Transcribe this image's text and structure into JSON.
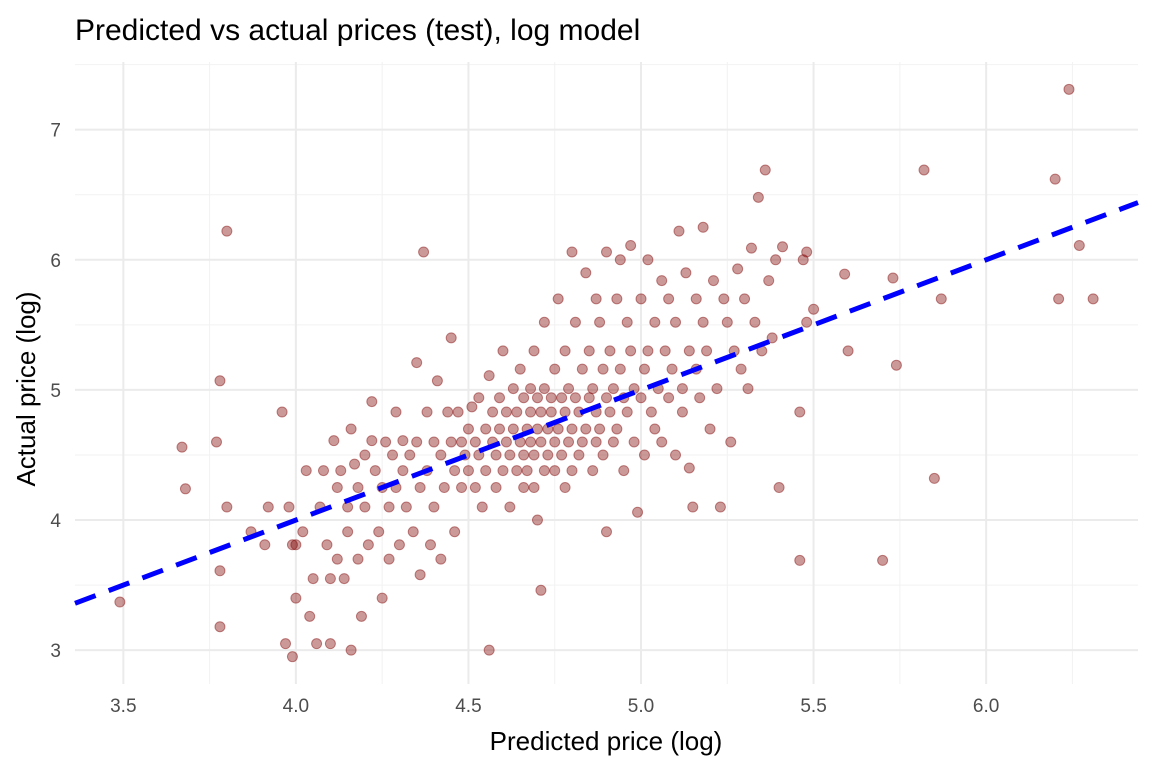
{
  "chart_data": {
    "type": "scatter",
    "title": "Predicted vs actual prices (test), log model",
    "xlabel": "Predicted price (log)",
    "ylabel": "Actual price (log)",
    "xlim": [
      3.36,
      6.44
    ],
    "ylim": [
      2.74,
      7.52
    ],
    "x_ticks": [
      3.5,
      4.0,
      4.5,
      5.0,
      5.5,
      6.0
    ],
    "x_tick_labels": [
      "3.5",
      "4.0",
      "4.5",
      "5.0",
      "5.5",
      "6.0"
    ],
    "y_ticks": [
      3,
      4,
      5,
      6,
      7
    ],
    "y_tick_labels": [
      "3",
      "4",
      "5",
      "6",
      "7"
    ],
    "grid": true,
    "legend": "none",
    "colors": {
      "points": "#7f0000",
      "reference_line": "#0000ff"
    },
    "reference_line": {
      "name": "",
      "slope": 1,
      "intercept": 0,
      "style": "dashed"
    },
    "series": [
      {
        "values": [
          [
            3.49,
            3.37
          ],
          [
            3.67,
            4.56
          ],
          [
            3.68,
            4.24
          ],
          [
            3.77,
            4.6
          ],
          [
            3.78,
            5.07
          ],
          [
            3.78,
            3.61
          ],
          [
            3.78,
            3.18
          ],
          [
            3.8,
            6.22
          ],
          [
            3.8,
            4.1
          ],
          [
            3.87,
            3.91
          ],
          [
            3.91,
            3.81
          ],
          [
            3.92,
            4.1
          ],
          [
            3.96,
            4.83
          ],
          [
            3.97,
            3.05
          ],
          [
            3.98,
            4.1
          ],
          [
            3.99,
            3.81
          ],
          [
            3.99,
            2.95
          ],
          [
            4.0,
            3.4
          ],
          [
            4.0,
            3.81
          ],
          [
            4.02,
            3.91
          ],
          [
            4.03,
            4.38
          ],
          [
            4.04,
            3.26
          ],
          [
            4.05,
            3.55
          ],
          [
            4.06,
            3.05
          ],
          [
            4.07,
            4.1
          ],
          [
            4.08,
            4.38
          ],
          [
            4.09,
            3.81
          ],
          [
            4.1,
            3.55
          ],
          [
            4.1,
            3.05
          ],
          [
            4.11,
            4.61
          ],
          [
            4.12,
            4.25
          ],
          [
            4.12,
            3.7
          ],
          [
            4.13,
            4.38
          ],
          [
            4.14,
            3.55
          ],
          [
            4.15,
            4.1
          ],
          [
            4.15,
            3.91
          ],
          [
            4.16,
            4.7
          ],
          [
            4.16,
            3.0
          ],
          [
            4.17,
            4.43
          ],
          [
            4.18,
            4.25
          ],
          [
            4.18,
            3.7
          ],
          [
            4.19,
            3.26
          ],
          [
            4.2,
            4.5
          ],
          [
            4.2,
            4.1
          ],
          [
            4.21,
            3.81
          ],
          [
            4.22,
            4.91
          ],
          [
            4.22,
            4.61
          ],
          [
            4.23,
            4.38
          ],
          [
            4.24,
            3.91
          ],
          [
            4.25,
            4.25
          ],
          [
            4.25,
            3.4
          ],
          [
            4.26,
            4.6
          ],
          [
            4.27,
            4.1
          ],
          [
            4.27,
            3.7
          ],
          [
            4.28,
            4.5
          ],
          [
            4.29,
            4.83
          ],
          [
            4.29,
            4.25
          ],
          [
            4.3,
            3.81
          ],
          [
            4.31,
            4.61
          ],
          [
            4.31,
            4.38
          ],
          [
            4.32,
            4.1
          ],
          [
            4.33,
            4.5
          ],
          [
            4.34,
            3.91
          ],
          [
            4.35,
            5.21
          ],
          [
            4.35,
            4.6
          ],
          [
            4.36,
            4.25
          ],
          [
            4.36,
            3.58
          ],
          [
            4.37,
            6.06
          ],
          [
            4.38,
            4.83
          ],
          [
            4.38,
            4.38
          ],
          [
            4.39,
            3.81
          ],
          [
            4.4,
            4.6
          ],
          [
            4.4,
            4.1
          ],
          [
            4.41,
            5.07
          ],
          [
            4.42,
            4.5
          ],
          [
            4.42,
            3.7
          ],
          [
            4.43,
            4.25
          ],
          [
            4.44,
            4.83
          ],
          [
            4.45,
            5.4
          ],
          [
            4.45,
            4.6
          ],
          [
            4.46,
            4.38
          ],
          [
            4.46,
            3.91
          ],
          [
            4.47,
            4.83
          ],
          [
            4.48,
            4.6
          ],
          [
            4.48,
            4.25
          ],
          [
            4.49,
            4.5
          ],
          [
            4.5,
            4.7
          ],
          [
            4.5,
            4.38
          ],
          [
            4.51,
            4.87
          ],
          [
            4.52,
            4.6
          ],
          [
            4.52,
            4.25
          ],
          [
            4.53,
            4.94
          ],
          [
            4.53,
            4.5
          ],
          [
            4.54,
            4.1
          ],
          [
            4.55,
            4.7
          ],
          [
            4.55,
            4.38
          ],
          [
            4.56,
            3.0
          ],
          [
            4.56,
            5.11
          ],
          [
            4.57,
            4.83
          ],
          [
            4.57,
            4.6
          ],
          [
            4.58,
            4.25
          ],
          [
            4.58,
            4.5
          ],
          [
            4.59,
            4.94
          ],
          [
            4.59,
            4.7
          ],
          [
            4.6,
            4.38
          ],
          [
            4.6,
            5.3
          ],
          [
            4.61,
            4.6
          ],
          [
            4.61,
            4.83
          ],
          [
            4.62,
            4.1
          ],
          [
            4.62,
            4.5
          ],
          [
            4.63,
            5.01
          ],
          [
            4.63,
            4.7
          ],
          [
            4.64,
            4.38
          ],
          [
            4.64,
            4.83
          ],
          [
            4.65,
            4.6
          ],
          [
            4.65,
            5.16
          ],
          [
            4.66,
            4.25
          ],
          [
            4.66,
            4.94
          ],
          [
            4.66,
            4.5
          ],
          [
            4.67,
            4.7
          ],
          [
            4.67,
            4.38
          ],
          [
            4.68,
            5.01
          ],
          [
            4.68,
            4.83
          ],
          [
            4.68,
            4.6
          ],
          [
            4.69,
            5.3
          ],
          [
            4.69,
            4.5
          ],
          [
            4.69,
            4.25
          ],
          [
            4.7,
            4.94
          ],
          [
            4.7,
            4.7
          ],
          [
            4.7,
            4.0
          ],
          [
            4.71,
            3.46
          ],
          [
            4.71,
            4.83
          ],
          [
            4.71,
            4.6
          ],
          [
            4.72,
            5.52
          ],
          [
            4.72,
            4.38
          ],
          [
            4.72,
            5.01
          ],
          [
            4.73,
            4.7
          ],
          [
            4.73,
            4.5
          ],
          [
            4.74,
            4.94
          ],
          [
            4.74,
            4.83
          ],
          [
            4.75,
            5.16
          ],
          [
            4.75,
            4.6
          ],
          [
            4.75,
            4.38
          ],
          [
            4.76,
            5.7
          ],
          [
            4.76,
            4.7
          ],
          [
            4.77,
            4.94
          ],
          [
            4.77,
            4.5
          ],
          [
            4.78,
            5.3
          ],
          [
            4.78,
            4.83
          ],
          [
            4.78,
            4.25
          ],
          [
            4.79,
            4.6
          ],
          [
            4.79,
            5.01
          ],
          [
            4.8,
            6.06
          ],
          [
            4.8,
            4.7
          ],
          [
            4.8,
            4.38
          ],
          [
            4.81,
            4.94
          ],
          [
            4.81,
            5.52
          ],
          [
            4.82,
            4.83
          ],
          [
            4.82,
            4.5
          ],
          [
            4.83,
            5.16
          ],
          [
            4.83,
            4.6
          ],
          [
            4.84,
            5.9
          ],
          [
            4.84,
            4.7
          ],
          [
            4.85,
            5.3
          ],
          [
            4.85,
            4.94
          ],
          [
            4.86,
            4.38
          ],
          [
            4.86,
            5.01
          ],
          [
            4.87,
            5.7
          ],
          [
            4.87,
            4.83
          ],
          [
            4.87,
            4.6
          ],
          [
            4.88,
            5.52
          ],
          [
            4.88,
            4.7
          ],
          [
            4.89,
            5.16
          ],
          [
            4.89,
            4.5
          ],
          [
            4.9,
            6.06
          ],
          [
            4.9,
            4.94
          ],
          [
            4.9,
            3.91
          ],
          [
            4.91,
            5.3
          ],
          [
            4.91,
            4.83
          ],
          [
            4.92,
            5.01
          ],
          [
            4.92,
            4.6
          ],
          [
            4.93,
            5.7
          ],
          [
            4.93,
            4.7
          ],
          [
            4.94,
            6.0
          ],
          [
            4.94,
            5.16
          ],
          [
            4.95,
            4.94
          ],
          [
            4.95,
            4.38
          ],
          [
            4.96,
            5.52
          ],
          [
            4.96,
            4.83
          ],
          [
            4.97,
            5.3
          ],
          [
            4.97,
            6.11
          ],
          [
            4.98,
            4.6
          ],
          [
            4.98,
            5.01
          ],
          [
            4.99,
            4.06
          ],
          [
            5.0,
            5.7
          ],
          [
            5.0,
            4.94
          ],
          [
            5.01,
            5.16
          ],
          [
            5.01,
            4.5
          ],
          [
            5.02,
            6.0
          ],
          [
            5.02,
            5.3
          ],
          [
            5.03,
            4.83
          ],
          [
            5.04,
            5.52
          ],
          [
            5.04,
            4.7
          ],
          [
            5.05,
            5.01
          ],
          [
            5.06,
            5.84
          ],
          [
            5.06,
            4.6
          ],
          [
            5.07,
            5.3
          ],
          [
            5.08,
            4.94
          ],
          [
            5.08,
            5.7
          ],
          [
            5.09,
            5.16
          ],
          [
            5.1,
            4.5
          ],
          [
            5.1,
            5.52
          ],
          [
            5.11,
            6.22
          ],
          [
            5.12,
            5.01
          ],
          [
            5.12,
            4.83
          ],
          [
            5.13,
            5.9
          ],
          [
            5.14,
            5.3
          ],
          [
            5.14,
            4.4
          ],
          [
            5.15,
            4.1
          ],
          [
            5.16,
            5.7
          ],
          [
            5.16,
            5.16
          ],
          [
            5.17,
            4.94
          ],
          [
            5.18,
            5.52
          ],
          [
            5.18,
            6.25
          ],
          [
            5.19,
            5.3
          ],
          [
            5.2,
            4.7
          ],
          [
            5.21,
            5.84
          ],
          [
            5.22,
            5.01
          ],
          [
            5.23,
            4.1
          ],
          [
            5.24,
            5.7
          ],
          [
            5.25,
            5.52
          ],
          [
            5.26,
            4.6
          ],
          [
            5.27,
            5.3
          ],
          [
            5.28,
            5.93
          ],
          [
            5.29,
            5.16
          ],
          [
            5.3,
            5.7
          ],
          [
            5.31,
            5.01
          ],
          [
            5.32,
            6.09
          ],
          [
            5.33,
            5.52
          ],
          [
            5.34,
            6.48
          ],
          [
            5.35,
            5.3
          ],
          [
            5.36,
            6.69
          ],
          [
            5.37,
            5.84
          ],
          [
            5.38,
            5.4
          ],
          [
            5.39,
            6.0
          ],
          [
            5.4,
            4.25
          ],
          [
            5.41,
            6.1
          ],
          [
            5.46,
            4.83
          ],
          [
            5.46,
            3.69
          ],
          [
            5.47,
            6.0
          ],
          [
            5.48,
            6.06
          ],
          [
            5.48,
            5.52
          ],
          [
            5.5,
            5.62
          ],
          [
            5.59,
            5.89
          ],
          [
            5.6,
            5.3
          ],
          [
            5.7,
            3.69
          ],
          [
            5.73,
            5.86
          ],
          [
            5.74,
            5.19
          ],
          [
            5.82,
            6.69
          ],
          [
            5.85,
            4.32
          ],
          [
            5.87,
            5.7
          ],
          [
            6.2,
            6.62
          ],
          [
            6.21,
            5.7
          ],
          [
            6.24,
            7.31
          ],
          [
            6.27,
            6.11
          ],
          [
            6.31,
            5.7
          ]
        ]
      }
    ]
  }
}
